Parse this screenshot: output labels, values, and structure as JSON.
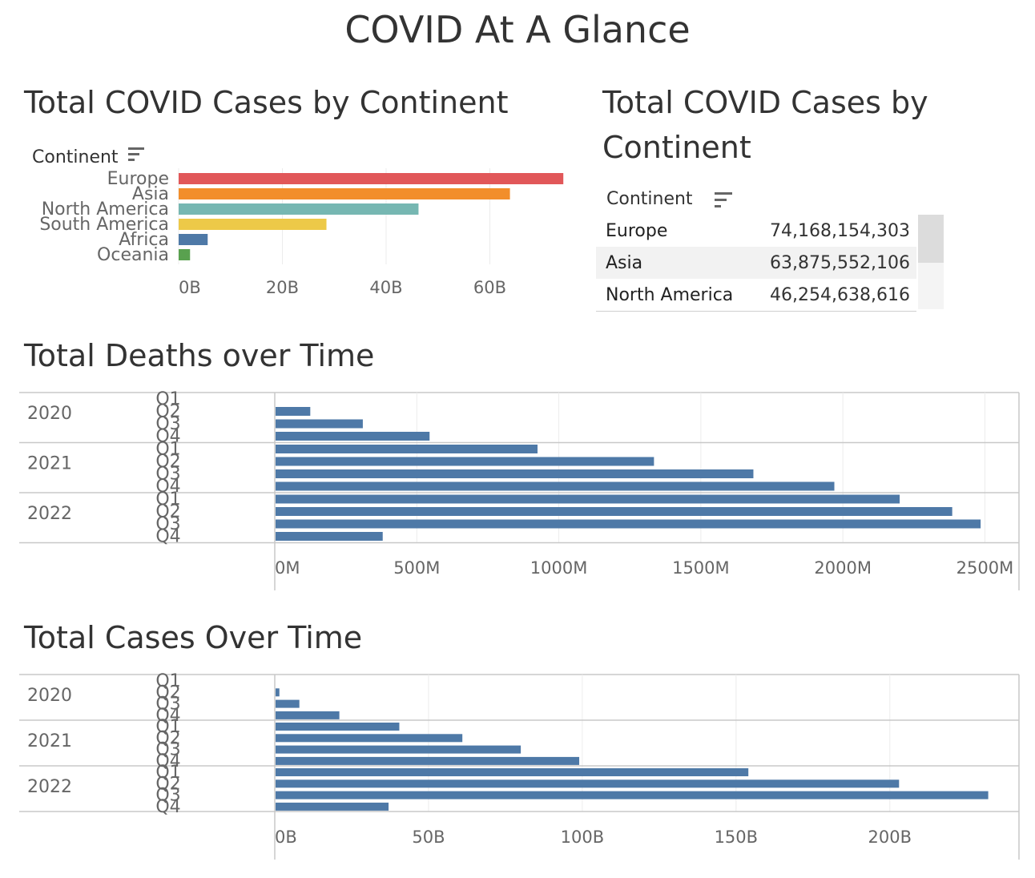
{
  "dashboard": {
    "title": "COVID At A Glance"
  },
  "continent_chart": {
    "title": "Total COVID Cases by Continent",
    "header": "Continent"
  },
  "continent_table": {
    "title_line1": "Total COVID Cases by",
    "title_line2": "Continent",
    "header": "Continent",
    "rows": [
      {
        "name": "Europe",
        "value": "74,168,154,303"
      },
      {
        "name": "Asia",
        "value": "63,875,552,106"
      },
      {
        "name": "North America",
        "value": "46,254,638,616"
      }
    ]
  },
  "deaths_chart": {
    "title": "Total Deaths over Time"
  },
  "cases_chart": {
    "title": "Total Cases Over Time"
  },
  "colors": {
    "europe": "#e15759",
    "asia": "#f28e2b",
    "north_america": "#76b7b2",
    "south_america": "#edc948",
    "africa": "#4e79a7",
    "oceania": "#59a14f",
    "bar": "#4e79a7"
  },
  "chart_data": [
    {
      "type": "bar",
      "orientation": "horizontal",
      "title": "Total COVID Cases by Continent",
      "ylabel": "Continent",
      "categories": [
        "Europe",
        "Asia",
        "North America",
        "South America",
        "Africa",
        "Oceania"
      ],
      "values": [
        74.17,
        63.88,
        46.25,
        28.5,
        5.6,
        2.2
      ],
      "unit": "B",
      "xticks": [
        "0B",
        "20B",
        "40B",
        "60B"
      ],
      "xlim": [
        0,
        78
      ],
      "grid": true
    },
    {
      "type": "bar",
      "orientation": "horizontal",
      "title": "Total Deaths over Time",
      "groups": [
        {
          "year": "2020",
          "quarters": [
            "Q1",
            "Q2",
            "Q3",
            "Q4"
          ],
          "values": [
            0,
            125,
            310,
            545
          ]
        },
        {
          "year": "2021",
          "quarters": [
            "Q1",
            "Q2",
            "Q3",
            "Q4"
          ],
          "values": [
            925,
            1335,
            1685,
            1970
          ]
        },
        {
          "year": "2022",
          "quarters": [
            "Q1",
            "Q2",
            "Q3",
            "Q4"
          ],
          "values": [
            2200,
            2385,
            2485,
            380
          ]
        }
      ],
      "unit": "M",
      "xticks": [
        "0M",
        "500M",
        "1000M",
        "1500M",
        "2000M",
        "2500M"
      ],
      "xlim": [
        0,
        2620
      ],
      "grid": true
    },
    {
      "type": "bar",
      "orientation": "horizontal",
      "title": "Total Cases Over Time",
      "groups": [
        {
          "year": "2020",
          "quarters": [
            "Q1",
            "Q2",
            "Q3",
            "Q4"
          ],
          "values": [
            0,
            1.5,
            8,
            21
          ]
        },
        {
          "year": "2021",
          "quarters": [
            "Q1",
            "Q2",
            "Q3",
            "Q4"
          ],
          "values": [
            40.5,
            61,
            80,
            99
          ]
        },
        {
          "year": "2022",
          "quarters": [
            "Q1",
            "Q2",
            "Q3",
            "Q4"
          ],
          "values": [
            154,
            203,
            232,
            37
          ]
        }
      ],
      "unit": "B",
      "xticks": [
        "0B",
        "50B",
        "100B",
        "150B",
        "200B"
      ],
      "xlim": [
        0,
        242
      ],
      "grid": true
    }
  ]
}
